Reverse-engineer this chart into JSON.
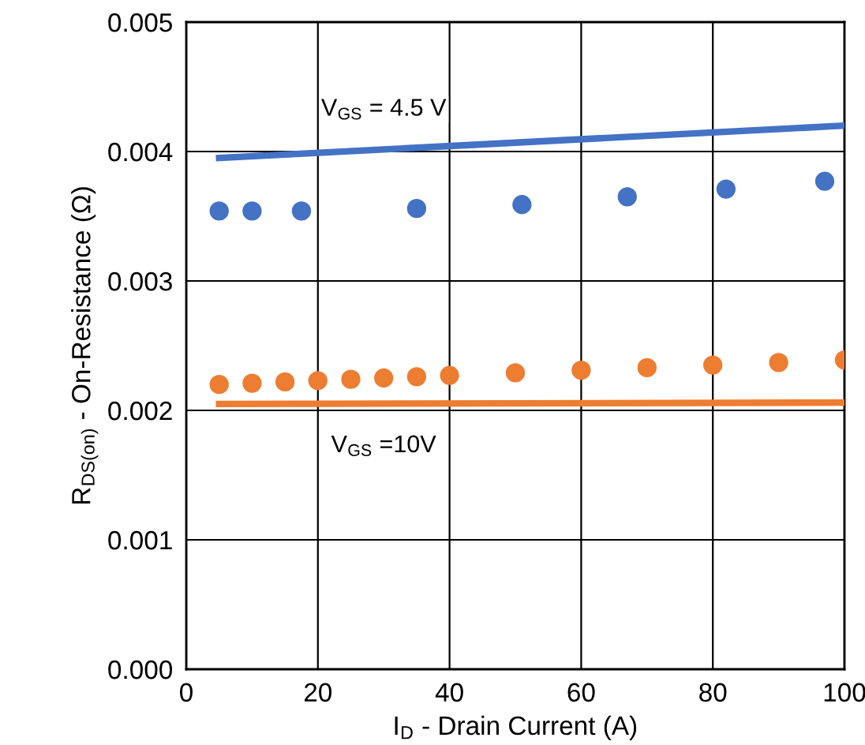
{
  "chart_data": {
    "type": "scatter",
    "xlabel": "I$_{D}$ - Drain Current (A)",
    "ylabel": "R$_{DS(on)}$ - On-Resistance (Ω)",
    "series": [
      {
        "type": "line",
        "color": "#4472c4",
        "x": [
          5,
          100
        ],
        "values": [
          0.00395,
          0.0042
        ],
        "marker": "none",
        "line_style": "solid"
      },
      {
        "color": "#4472c4",
        "x": [
          5,
          10,
          17.5,
          35,
          51,
          67,
          82,
          97
        ],
        "values": [
          0.00354,
          0.00354,
          0.00354,
          0.00356,
          0.00359,
          0.00365,
          0.00371,
          0.00377
        ],
        "marker": "circle"
      },
      {
        "color": "#ed7d31",
        "x": [
          5,
          10,
          15,
          20,
          25,
          30,
          35,
          40,
          50,
          60,
          70,
          80,
          90,
          100
        ],
        "values": [
          0.0022,
          0.00221,
          0.00222,
          0.00223,
          0.00224,
          0.00225,
          0.00226,
          0.00227,
          0.00229,
          0.00231,
          0.00233,
          0.00235,
          0.00237,
          0.00239
        ],
        "marker": "circle"
      },
      {
        "type": "line",
        "color": "#ed7d31",
        "x": [
          5,
          100
        ],
        "values": [
          0.00205,
          0.00206
        ],
        "marker": "none",
        "line_style": "solid"
      }
    ],
    "annotations": [
      "V$_{GS}$ = 4.5 V",
      "V$_{GS}$ =10V"
    ],
    "xlim": [
      0,
      100
    ],
    "xticks": [
      0,
      20,
      40,
      60,
      80,
      100
    ],
    "ylim": [
      0,
      0.005
    ],
    "yticks": [
      {
        "value": 0,
        "label": "0.000"
      },
      {
        "value": 0.001,
        "label": "0.001"
      },
      {
        "value": 0.002,
        "label": "0.002"
      },
      {
        "value": 0.003,
        "label": "0.003"
      },
      {
        "value": 0.004,
        "label": "0.004"
      },
      {
        "value": 0.005,
        "label": "0.005"
      }
    ],
    "grid": true
  }
}
